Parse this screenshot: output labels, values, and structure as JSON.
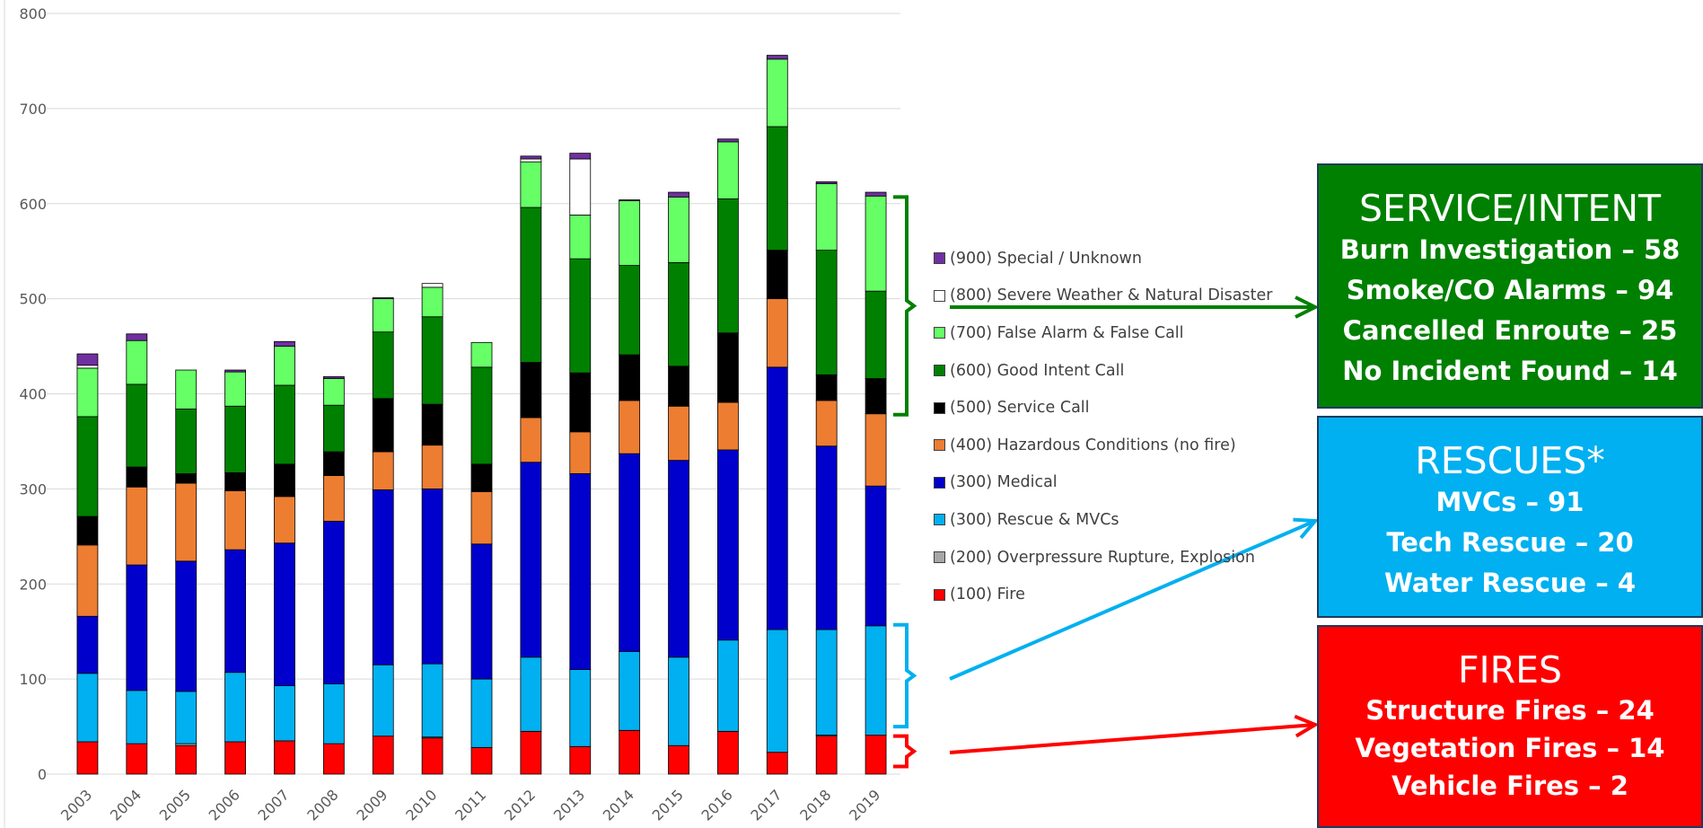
{
  "chart_data": {
    "type": "bar",
    "stacked": true,
    "categories": [
      "2003",
      "2004",
      "2005",
      "2006",
      "2007",
      "2008",
      "2009",
      "2010",
      "2011",
      "2012",
      "2013",
      "2014",
      "2015",
      "2016",
      "2017",
      "2018",
      "2019"
    ],
    "ylim": [
      0,
      800
    ],
    "yticks": [
      0,
      100,
      200,
      300,
      400,
      500,
      600,
      700,
      800
    ],
    "grid": true,
    "legend_position": "right",
    "series": [
      {
        "name": "(100) Fire",
        "color": "#ff0000",
        "values": [
          34,
          32,
          30,
          34,
          35,
          32,
          40,
          38,
          28,
          45,
          29,
          46,
          30,
          45,
          23,
          40,
          41
        ]
      },
      {
        "name": "(200) Overpressure Rupture, Explosion",
        "color": "#a6a6a6",
        "values": [
          0,
          0,
          2,
          0,
          0,
          0,
          0,
          1,
          0,
          0,
          0,
          0,
          0,
          0,
          0,
          1,
          0
        ]
      },
      {
        "name": "(300) Rescue & MVCs",
        "color": "#00b0f0",
        "values": [
          72,
          56,
          55,
          73,
          58,
          63,
          75,
          77,
          72,
          78,
          81,
          83,
          93,
          96,
          129,
          111,
          115
        ]
      },
      {
        "name": "(300) Medical",
        "color": "#0000cc",
        "values": [
          60,
          132,
          137,
          129,
          150,
          171,
          184,
          184,
          142,
          205,
          206,
          208,
          207,
          200,
          276,
          193,
          147
        ]
      },
      {
        "name": "(400) Hazardous Conditions (no fire)",
        "color": "#ed7d31",
        "values": [
          75,
          82,
          82,
          62,
          49,
          48,
          40,
          46,
          55,
          47,
          44,
          56,
          57,
          50,
          72,
          48,
          76
        ]
      },
      {
        "name": "(500) Service Call",
        "color": "#000000",
        "values": [
          30,
          21,
          10,
          19,
          34,
          25,
          56,
          43,
          29,
          58,
          62,
          48,
          42,
          73,
          51,
          27,
          37
        ]
      },
      {
        "name": "(600) Good Intent Call",
        "color": "#008000",
        "values": [
          105,
          87,
          68,
          70,
          83,
          49,
          70,
          92,
          102,
          163,
          120,
          94,
          109,
          141,
          130,
          131,
          92
        ]
      },
      {
        "name": "(700) False Alarm & False Call",
        "color": "#66ff66",
        "values": [
          51,
          46,
          41,
          36,
          41,
          28,
          35,
          31,
          26,
          48,
          46,
          68,
          69,
          60,
          71,
          70,
          100
        ]
      },
      {
        "name": "(800) Severe Weather & Natural Disaster",
        "color": "#ffffff",
        "values": [
          3,
          0,
          0,
          0,
          0,
          0,
          0,
          4,
          0,
          3,
          59,
          0,
          0,
          0,
          0,
          0,
          0
        ]
      },
      {
        "name": "(900) Special / Unknown",
        "color": "#7030a0",
        "values": [
          12,
          7,
          0,
          2,
          5,
          2,
          1,
          0,
          0,
          3,
          6,
          1,
          5,
          3,
          4,
          2,
          4
        ]
      }
    ],
    "legend_order": [
      "(900) Special / Unknown",
      "(800) Severe Weather & Natural Disaster",
      "(700) False Alarm & False Call",
      "(600) Good Intent Call",
      "(500) Service Call",
      "(400) Hazardous Conditions (no fire)",
      "(300) Medical",
      "(300) Rescue & MVCs",
      "(200) Overpressure Rupture, Explosion",
      "(100) Fire"
    ],
    "legend_colors": {
      "(900) Special / Unknown": "#7030a0",
      "(800) Severe Weather & Natural Disaster": "#ffffff",
      "(700) False Alarm & False Call": "#66ff66",
      "(600) Good Intent Call": "#008000",
      "(500) Service Call": "#000000",
      "(400) Hazardous Conditions (no fire)": "#ed7d31",
      "(300) Medical": "#0000cc",
      "(300) Rescue & MVCs": "#00b0f0",
      "(200) Overpressure Rupture, Explosion": "#a6a6a6",
      "(100) Fire": "#ff0000"
    },
    "annotations": {
      "service_intent_bracket_range": [
        378,
        607
      ],
      "rescue_bracket_range": [
        50,
        157
      ],
      "fire_bracket_range": [
        8,
        40
      ]
    }
  },
  "callouts": {
    "service": {
      "title": "SERVICE/INTENT",
      "lines": [
        "Burn Investigation – 58",
        "Smoke/CO Alarms – 94",
        "Cancelled Enroute – 25",
        "No Incident Found – 14"
      ],
      "color": "#008000"
    },
    "rescues": {
      "title": "RESCUES*",
      "lines": [
        "MVCs – 91",
        "Tech Rescue – 20",
        "Water Rescue – 4"
      ],
      "color": "#00b0f0"
    },
    "fires": {
      "title": "FIRES",
      "lines": [
        "Structure Fires – 24",
        "Vegetation Fires – 14",
        "Vehicle Fires – 2"
      ],
      "color": "#ff0000"
    }
  }
}
